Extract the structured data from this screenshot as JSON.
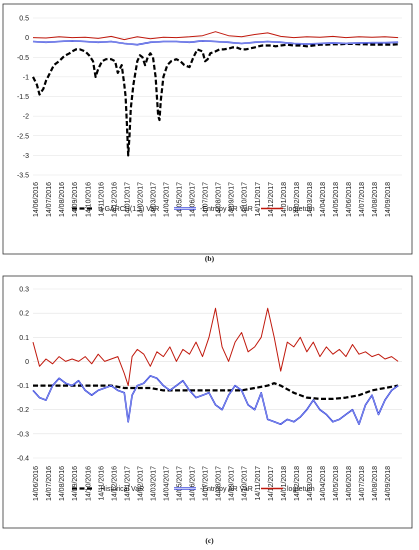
{
  "chart_data": [
    {
      "type": "line",
      "caption": "(b)",
      "ylim": [
        -3.5,
        0.5
      ],
      "yticks": [
        "0.5",
        "0",
        "-0.5",
        "-1",
        "-1.5",
        "-2",
        "-2.5",
        "-3",
        "-3.5"
      ],
      "ytick_values": [
        0.5,
        0,
        -0.5,
        -1,
        -1.5,
        -2,
        -2.5,
        -3,
        -3.5
      ],
      "x_tick_labels": [
        "14/06/2016",
        "14/07/2016",
        "14/08/2016",
        "14/09/2016",
        "14/10/2016",
        "14/11/2016",
        "14/12/2016",
        "14/01/2017",
        "14/02/2017",
        "14/03/2017",
        "14/04/2017",
        "14/05/2017",
        "14/06/2017",
        "14/07/2017",
        "14/08/2017",
        "14/09/2017",
        "14/10/2017",
        "14/11/2017",
        "14/12/2017",
        "14/01/2018",
        "14/02/2018",
        "14/03/2018",
        "14/04/2018",
        "14/05/2018",
        "14/06/2018",
        "14/07/2018",
        "14/08/2018",
        "14/09/2018"
      ],
      "x_months": [
        0,
        1,
        2,
        3,
        4,
        5,
        6,
        7,
        8,
        9,
        10,
        11,
        12,
        13,
        14,
        15,
        16,
        17,
        18,
        19,
        20,
        21,
        22,
        23,
        24,
        25,
        26,
        27,
        28
      ],
      "series": [
        {
          "name": "-t-GARCH(1,1) VaR",
          "color": "#000000",
          "style": "dashed",
          "x": [
            0,
            0.3,
            0.5,
            0.8,
            1.0,
            1.3,
            1.6,
            2.0,
            2.3,
            2.5,
            2.8,
            3.0,
            3.3,
            3.6,
            4.0,
            4.3,
            4.6,
            4.8,
            5.0,
            5.3,
            5.6,
            6.0,
            6.3,
            6.5,
            6.8,
            7.0,
            7.1,
            7.2,
            7.3,
            7.4,
            7.5,
            7.7,
            7.9,
            8.0,
            8.2,
            8.4,
            8.6,
            8.8,
            9.0,
            9.2,
            9.4,
            9.5,
            9.6,
            9.7,
            9.8,
            10.0,
            10.3,
            10.6,
            11.0,
            11.3,
            11.6,
            12.0,
            12.3,
            12.6,
            13.0,
            13.2,
            13.4,
            13.6,
            14.0,
            14.3,
            14.6,
            15.0,
            15.3,
            15.6,
            16.0,
            16.3,
            16.6,
            17.0,
            17.3,
            17.6,
            18.0,
            18.3,
            18.6,
            19.0,
            19.5,
            20.0,
            20.5,
            21.0,
            21.5,
            22.0,
            22.5,
            23.0,
            23.5,
            24.0,
            24.5,
            25.0,
            25.5,
            26.0,
            26.5,
            27.0,
            27.5,
            28.0
          ],
          "y": [
            -1.0,
            -1.2,
            -1.45,
            -1.3,
            -1.1,
            -0.9,
            -0.7,
            -0.6,
            -0.5,
            -0.45,
            -0.4,
            -0.35,
            -0.3,
            -0.3,
            -0.35,
            -0.45,
            -0.6,
            -1.0,
            -0.8,
            -0.6,
            -0.55,
            -0.55,
            -0.6,
            -0.9,
            -0.7,
            -1.2,
            -1.5,
            -2.2,
            -3.0,
            -2.5,
            -1.8,
            -1.2,
            -0.8,
            -0.6,
            -0.45,
            -0.5,
            -0.7,
            -0.5,
            -0.4,
            -0.5,
            -1.0,
            -1.5,
            -2.0,
            -2.1,
            -1.6,
            -1.0,
            -0.7,
            -0.6,
            -0.55,
            -0.6,
            -0.7,
            -0.75,
            -0.5,
            -0.3,
            -0.35,
            -0.6,
            -0.55,
            -0.4,
            -0.35,
            -0.3,
            -0.3,
            -0.28,
            -0.25,
            -0.25,
            -0.3,
            -0.3,
            -0.28,
            -0.25,
            -0.22,
            -0.2,
            -0.2,
            -0.2,
            -0.22,
            -0.2,
            -0.18,
            -0.2,
            -0.2,
            -0.22,
            -0.2,
            -0.18,
            -0.18,
            -0.17,
            -0.17,
            -0.16,
            -0.16,
            -0.17,
            -0.17,
            -0.18,
            -0.18,
            -0.18,
            -0.18,
            -0.17
          ]
        },
        {
          "name": "-Entropy AR VaR",
          "color": "#1f2fd6",
          "style": "double",
          "x": [
            0,
            1,
            2,
            3,
            4,
            5,
            6,
            7,
            8,
            9,
            10,
            11,
            12,
            13,
            14,
            15,
            16,
            17,
            18,
            19,
            20,
            21,
            22,
            23,
            24,
            25,
            26,
            27,
            28
          ],
          "y": [
            -0.1,
            -0.12,
            -0.1,
            -0.08,
            -0.1,
            -0.12,
            -0.1,
            -0.15,
            -0.18,
            -0.12,
            -0.1,
            -0.1,
            -0.12,
            -0.08,
            -0.1,
            -0.12,
            -0.15,
            -0.12,
            -0.1,
            -0.12,
            -0.15,
            -0.16,
            -0.15,
            -0.14,
            -0.15,
            -0.14,
            -0.13,
            -0.13,
            -0.12
          ]
        },
        {
          "name": "logreturn",
          "color": "#c0180c",
          "style": "solid",
          "x": [
            0,
            1,
            2,
            3,
            4,
            5,
            6,
            7,
            8,
            9,
            10,
            11,
            12,
            13,
            14,
            15,
            16,
            17,
            18,
            19,
            20,
            21,
            22,
            23,
            24,
            25,
            26,
            27,
            28
          ],
          "y": [
            0.0,
            -0.01,
            0.02,
            0.0,
            0.01,
            -0.02,
            0.03,
            -0.05,
            0.02,
            -0.03,
            0.01,
            0.0,
            0.02,
            0.05,
            0.15,
            0.05,
            0.02,
            0.08,
            0.12,
            0.03,
            0.0,
            0.02,
            0.01,
            0.03,
            0.0,
            0.02,
            0.01,
            0.02,
            0.0
          ]
        }
      ]
    },
    {
      "type": "line",
      "caption": "(c)",
      "ylim": [
        -0.4,
        0.3
      ],
      "yticks": [
        "0.3",
        "0.2",
        "0.1",
        "0",
        "-0.1",
        "-0.2",
        "-0.3",
        "-0.4"
      ],
      "ytick_values": [
        0.3,
        0.2,
        0.1,
        0,
        -0.1,
        -0.2,
        -0.3,
        -0.4
      ],
      "x_tick_labels": [
        "14/06/2016",
        "14/07/2016",
        "14/08/2016",
        "14/09/2016",
        "14/10/2016",
        "14/11/2016",
        "14/12/2016",
        "14/01/2017",
        "14/02/2017",
        "14/03/2017",
        "14/04/2017",
        "14/05/2017",
        "14/06/2017",
        "14/07/2017",
        "14/08/2017",
        "14/09/2017",
        "14/10/2017",
        "14/11/2017",
        "14/12/2017",
        "14/01/2018",
        "14/02/2018",
        "14/03/2018",
        "14/04/2018",
        "14/05/2018",
        "14/06/2018",
        "14/07/2018",
        "14/08/2018",
        "14/09/2018"
      ],
      "x_months": [
        0,
        1,
        2,
        3,
        4,
        5,
        6,
        7,
        8,
        9,
        10,
        11,
        12,
        13,
        14,
        15,
        16,
        17,
        18,
        19,
        20,
        21,
        22,
        23,
        24,
        25,
        26,
        27,
        28
      ],
      "series": [
        {
          "name": "-Historical VaR",
          "color": "#000000",
          "style": "dashed",
          "x": [
            0,
            1,
            2,
            3,
            4,
            5,
            6,
            7,
            8,
            9,
            10,
            11,
            12,
            13,
            14,
            15,
            16,
            17,
            18,
            18.5,
            19,
            20,
            21,
            22,
            23,
            24,
            25,
            26,
            27,
            28
          ],
          "y": [
            -0.1,
            -0.1,
            -0.1,
            -0.1,
            -0.1,
            -0.1,
            -0.1,
            -0.11,
            -0.11,
            -0.11,
            -0.12,
            -0.12,
            -0.12,
            -0.12,
            -0.12,
            -0.12,
            -0.12,
            -0.11,
            -0.1,
            -0.09,
            -0.1,
            -0.13,
            -0.15,
            -0.155,
            -0.155,
            -0.15,
            -0.14,
            -0.12,
            -0.11,
            -0.1
          ]
        },
        {
          "name": "-Entropy AR VaR",
          "color": "#1f2fd6",
          "style": "double",
          "x": [
            0,
            0.5,
            1,
            1.5,
            2,
            2.5,
            3,
            3.5,
            4,
            4.5,
            5,
            5.5,
            6,
            6.5,
            7,
            7.3,
            7.6,
            8,
            8.5,
            9,
            9.5,
            10,
            10.5,
            11,
            11.5,
            12,
            12.5,
            13,
            13.5,
            14,
            14.5,
            15,
            15.5,
            16,
            16.5,
            17,
            17.5,
            18,
            18.5,
            19,
            19.5,
            20,
            20.5,
            21,
            21.5,
            22,
            22.5,
            23,
            23.5,
            24,
            24.5,
            25,
            25.5,
            26,
            26.5,
            27,
            27.5,
            28
          ],
          "y": [
            -0.12,
            -0.15,
            -0.16,
            -0.1,
            -0.07,
            -0.09,
            -0.1,
            -0.08,
            -0.12,
            -0.14,
            -0.12,
            -0.11,
            -0.1,
            -0.12,
            -0.13,
            -0.25,
            -0.14,
            -0.1,
            -0.09,
            -0.06,
            -0.07,
            -0.1,
            -0.12,
            -0.1,
            -0.08,
            -0.12,
            -0.15,
            -0.14,
            -0.13,
            -0.18,
            -0.2,
            -0.14,
            -0.1,
            -0.12,
            -0.18,
            -0.2,
            -0.13,
            -0.24,
            -0.25,
            -0.26,
            -0.24,
            -0.25,
            -0.23,
            -0.2,
            -0.16,
            -0.2,
            -0.22,
            -0.25,
            -0.24,
            -0.22,
            -0.2,
            -0.26,
            -0.18,
            -0.14,
            -0.22,
            -0.16,
            -0.12,
            -0.1
          ]
        },
        {
          "name": "logreturn",
          "color": "#c0180c",
          "style": "solid",
          "x": [
            0,
            0.5,
            1,
            1.5,
            2,
            2.5,
            3,
            3.5,
            4,
            4.5,
            5,
            5.5,
            6,
            6.5,
            7,
            7.3,
            7.6,
            8,
            8.5,
            9,
            9.5,
            10,
            10.5,
            11,
            11.5,
            12,
            12.5,
            13,
            13.5,
            14,
            14.5,
            15,
            15.5,
            16,
            16.5,
            17,
            17.5,
            18,
            18.5,
            19,
            19.5,
            20,
            20.5,
            21,
            21.5,
            22,
            22.5,
            23,
            23.5,
            24,
            24.5,
            25,
            25.5,
            26,
            26.5,
            27,
            27.5,
            28
          ],
          "y": [
            0.08,
            -0.02,
            0.01,
            -0.01,
            0.02,
            0.0,
            0.01,
            0.0,
            0.02,
            -0.01,
            0.03,
            0.0,
            0.01,
            0.02,
            -0.05,
            -0.1,
            0.02,
            0.05,
            0.03,
            -0.02,
            0.04,
            0.02,
            0.06,
            0.0,
            0.05,
            0.03,
            0.08,
            0.02,
            0.1,
            0.22,
            0.06,
            0.0,
            0.08,
            0.12,
            0.04,
            0.06,
            0.1,
            0.22,
            0.1,
            -0.04,
            0.08,
            0.06,
            0.1,
            0.04,
            0.08,
            0.02,
            0.06,
            0.03,
            0.05,
            0.02,
            0.07,
            0.03,
            0.04,
            0.02,
            0.03,
            0.01,
            0.02,
            0.0
          ]
        }
      ]
    }
  ]
}
